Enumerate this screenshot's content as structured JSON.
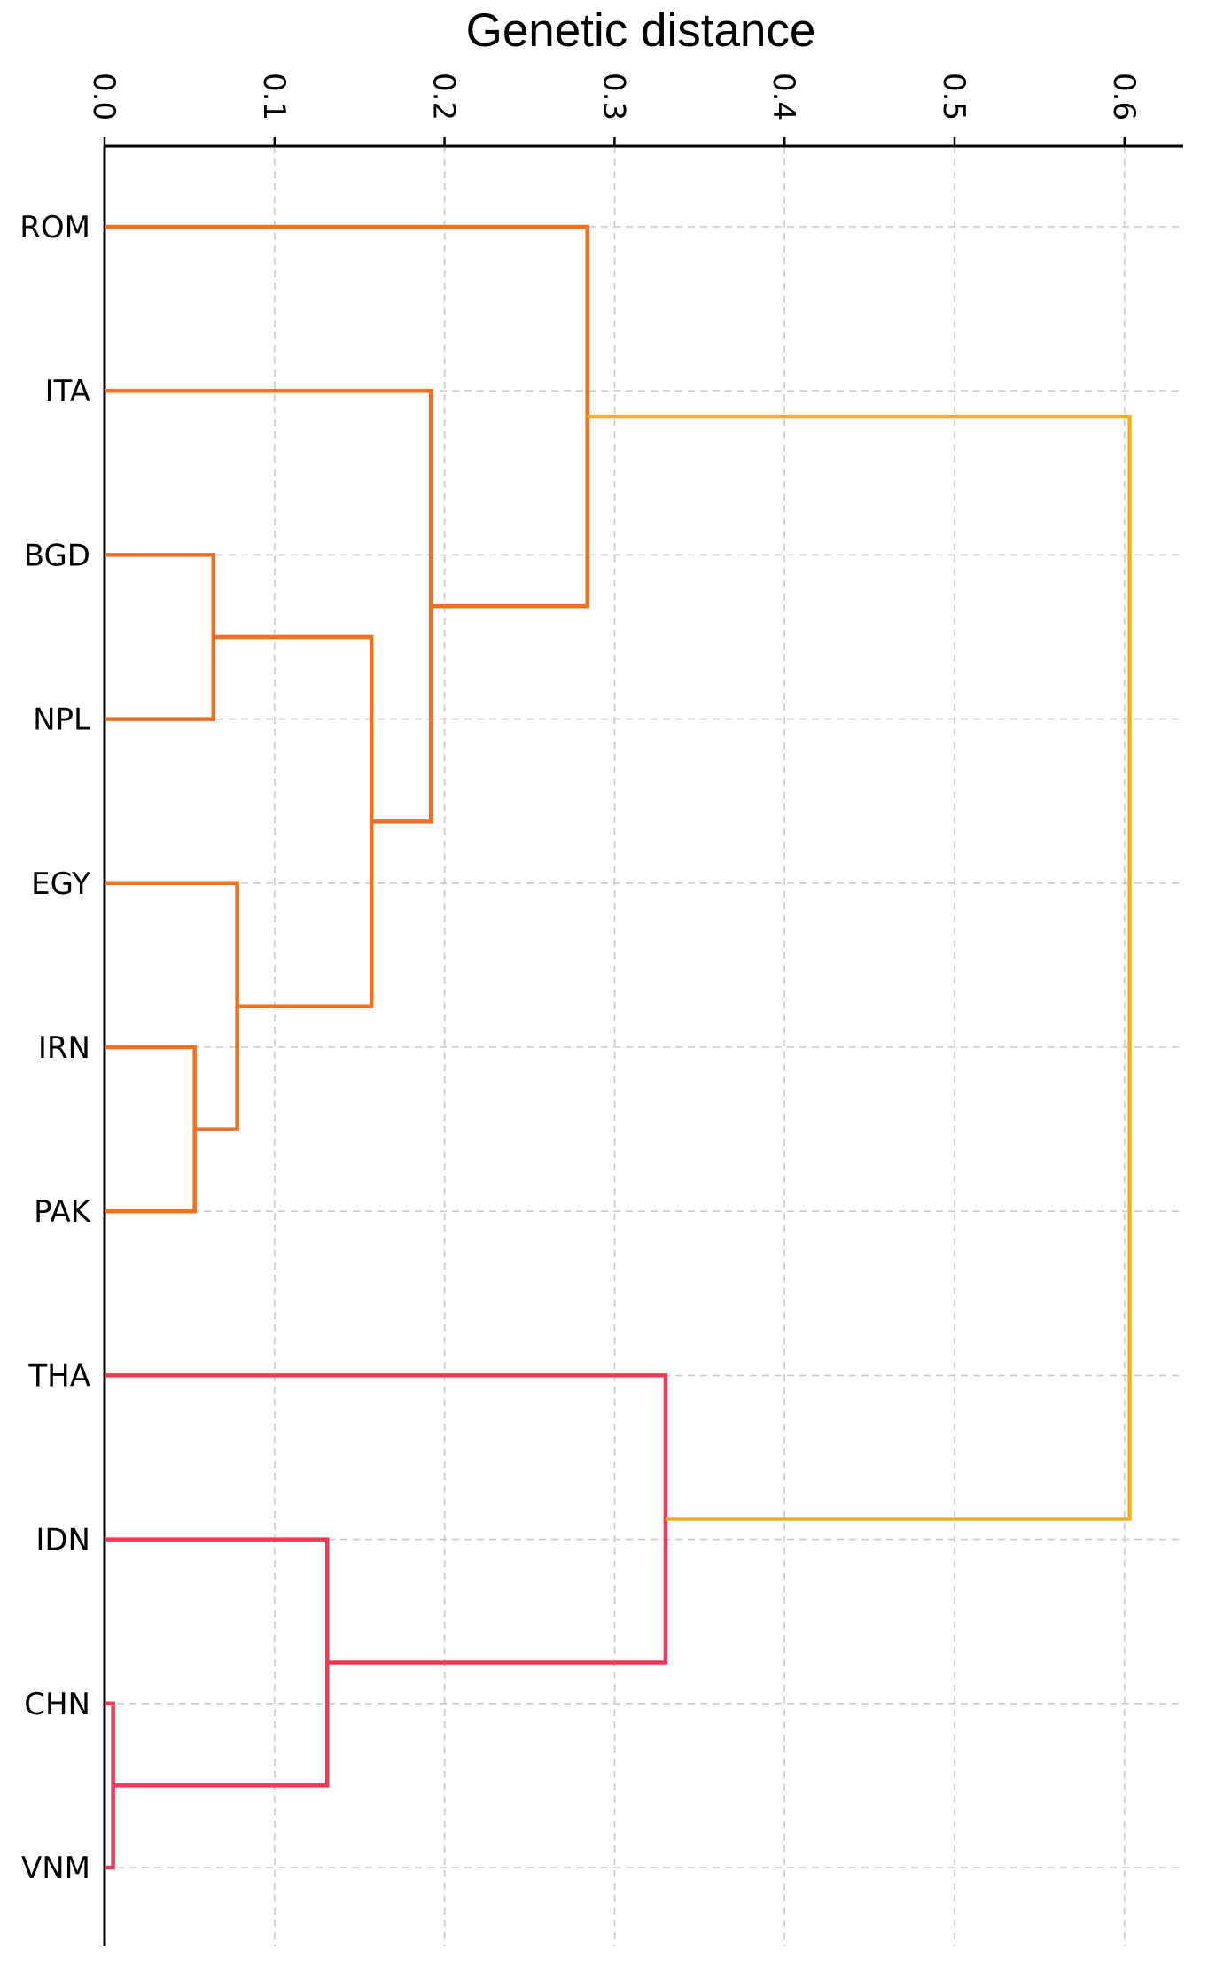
{
  "chart_data": {
    "type": "dendrogram",
    "orientation": "left",
    "title": "Genetic distance",
    "xlim": [
      0.0,
      0.635
    ],
    "x_ticks": [
      {
        "value": 0.0,
        "label": "0.0"
      },
      {
        "value": 0.1,
        "label": "0.1"
      },
      {
        "value": 0.2,
        "label": "0.2"
      },
      {
        "value": 0.3,
        "label": "0.3"
      },
      {
        "value": 0.4,
        "label": "0.4"
      },
      {
        "value": 0.5,
        "label": "0.5"
      },
      {
        "value": 0.6,
        "label": "0.6"
      }
    ],
    "grid": true,
    "leaves": [
      "ROM",
      "ITA",
      "BGD",
      "NPL",
      "EGY",
      "IRN",
      "PAK",
      "THA",
      "IDN",
      "CHN",
      "VNM"
    ],
    "colors": {
      "cluster_1": "#f36f21",
      "cluster_2": "#ee3a57",
      "root": "#f5b01e"
    },
    "merges": [
      {
        "id": "m_chn_vnm",
        "children": [
          "CHN",
          "VNM"
        ],
        "height": 0.005,
        "color": "cluster_2"
      },
      {
        "id": "m_irn_pak",
        "children": [
          "IRN",
          "PAK"
        ],
        "height": 0.053,
        "color": "cluster_1"
      },
      {
        "id": "m_bgd_npl",
        "children": [
          "BGD",
          "NPL"
        ],
        "height": 0.064,
        "color": "cluster_1"
      },
      {
        "id": "m_egy",
        "children": [
          "EGY",
          "m_irn_pak"
        ],
        "height": 0.078,
        "color": "cluster_1"
      },
      {
        "id": "m_idn",
        "children": [
          "IDN",
          "m_chn_vnm"
        ],
        "height": 0.131,
        "color": "cluster_2"
      },
      {
        "id": "m_south_asia",
        "children": [
          "m_bgd_npl",
          "m_egy"
        ],
        "height": 0.157,
        "color": "cluster_1"
      },
      {
        "id": "m_ita",
        "children": [
          "ITA",
          "m_south_asia"
        ],
        "height": 0.192,
        "color": "cluster_1"
      },
      {
        "id": "m_rom",
        "children": [
          "ROM",
          "m_ita"
        ],
        "height": 0.284,
        "color": "cluster_1"
      },
      {
        "id": "m_tha",
        "children": [
          "THA",
          "m_idn"
        ],
        "height": 0.33,
        "color": "cluster_2"
      },
      {
        "id": "m_root",
        "children": [
          "m_rom",
          "m_tha"
        ],
        "height": 0.603,
        "color": "root"
      }
    ]
  }
}
